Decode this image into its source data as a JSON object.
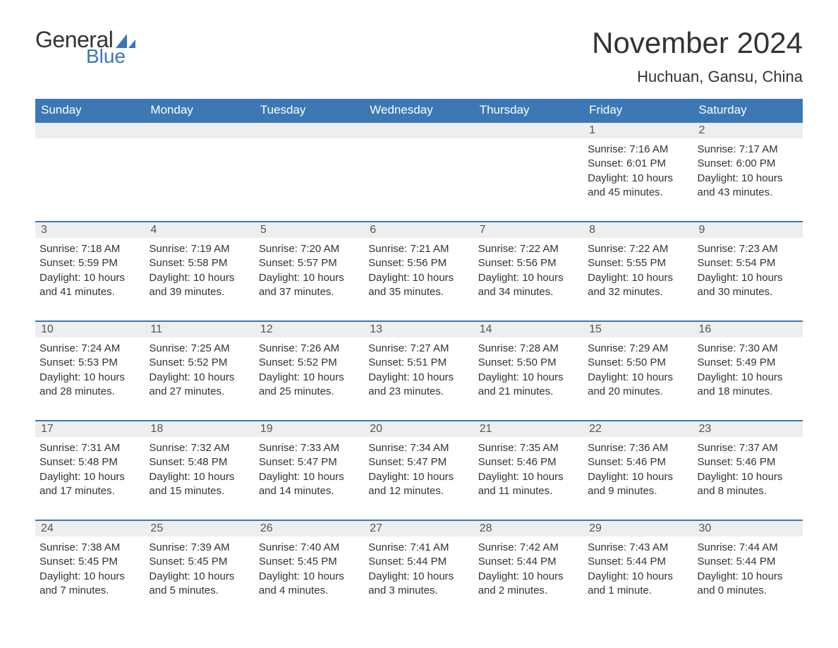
{
  "brand": {
    "word1": "General",
    "word2": "Blue",
    "logo_color": "#3b78b5"
  },
  "title": "November 2024",
  "location": "Huchuan, Gansu, China",
  "colors": {
    "header_bg": "#3b78b5",
    "header_text": "#ffffff",
    "daynum_bg": "#eeeeee",
    "row_divider": "#3b78b5",
    "text": "#333333",
    "background": "#ffffff"
  },
  "typography": {
    "title_fontsize": 42,
    "location_fontsize": 22,
    "header_fontsize": 17,
    "body_fontsize": 15
  },
  "columns": [
    "Sunday",
    "Monday",
    "Tuesday",
    "Wednesday",
    "Thursday",
    "Friday",
    "Saturday"
  ],
  "weeks": [
    [
      null,
      null,
      null,
      null,
      null,
      {
        "day": "1",
        "sunrise": "Sunrise: 7:16 AM",
        "sunset": "Sunset: 6:01 PM",
        "daylight1": "Daylight: 10 hours",
        "daylight2": "and 45 minutes."
      },
      {
        "day": "2",
        "sunrise": "Sunrise: 7:17 AM",
        "sunset": "Sunset: 6:00 PM",
        "daylight1": "Daylight: 10 hours",
        "daylight2": "and 43 minutes."
      }
    ],
    [
      {
        "day": "3",
        "sunrise": "Sunrise: 7:18 AM",
        "sunset": "Sunset: 5:59 PM",
        "daylight1": "Daylight: 10 hours",
        "daylight2": "and 41 minutes."
      },
      {
        "day": "4",
        "sunrise": "Sunrise: 7:19 AM",
        "sunset": "Sunset: 5:58 PM",
        "daylight1": "Daylight: 10 hours",
        "daylight2": "and 39 minutes."
      },
      {
        "day": "5",
        "sunrise": "Sunrise: 7:20 AM",
        "sunset": "Sunset: 5:57 PM",
        "daylight1": "Daylight: 10 hours",
        "daylight2": "and 37 minutes."
      },
      {
        "day": "6",
        "sunrise": "Sunrise: 7:21 AM",
        "sunset": "Sunset: 5:56 PM",
        "daylight1": "Daylight: 10 hours",
        "daylight2": "and 35 minutes."
      },
      {
        "day": "7",
        "sunrise": "Sunrise: 7:22 AM",
        "sunset": "Sunset: 5:56 PM",
        "daylight1": "Daylight: 10 hours",
        "daylight2": "and 34 minutes."
      },
      {
        "day": "8",
        "sunrise": "Sunrise: 7:22 AM",
        "sunset": "Sunset: 5:55 PM",
        "daylight1": "Daylight: 10 hours",
        "daylight2": "and 32 minutes."
      },
      {
        "day": "9",
        "sunrise": "Sunrise: 7:23 AM",
        "sunset": "Sunset: 5:54 PM",
        "daylight1": "Daylight: 10 hours",
        "daylight2": "and 30 minutes."
      }
    ],
    [
      {
        "day": "10",
        "sunrise": "Sunrise: 7:24 AM",
        "sunset": "Sunset: 5:53 PM",
        "daylight1": "Daylight: 10 hours",
        "daylight2": "and 28 minutes."
      },
      {
        "day": "11",
        "sunrise": "Sunrise: 7:25 AM",
        "sunset": "Sunset: 5:52 PM",
        "daylight1": "Daylight: 10 hours",
        "daylight2": "and 27 minutes."
      },
      {
        "day": "12",
        "sunrise": "Sunrise: 7:26 AM",
        "sunset": "Sunset: 5:52 PM",
        "daylight1": "Daylight: 10 hours",
        "daylight2": "and 25 minutes."
      },
      {
        "day": "13",
        "sunrise": "Sunrise: 7:27 AM",
        "sunset": "Sunset: 5:51 PM",
        "daylight1": "Daylight: 10 hours",
        "daylight2": "and 23 minutes."
      },
      {
        "day": "14",
        "sunrise": "Sunrise: 7:28 AM",
        "sunset": "Sunset: 5:50 PM",
        "daylight1": "Daylight: 10 hours",
        "daylight2": "and 21 minutes."
      },
      {
        "day": "15",
        "sunrise": "Sunrise: 7:29 AM",
        "sunset": "Sunset: 5:50 PM",
        "daylight1": "Daylight: 10 hours",
        "daylight2": "and 20 minutes."
      },
      {
        "day": "16",
        "sunrise": "Sunrise: 7:30 AM",
        "sunset": "Sunset: 5:49 PM",
        "daylight1": "Daylight: 10 hours",
        "daylight2": "and 18 minutes."
      }
    ],
    [
      {
        "day": "17",
        "sunrise": "Sunrise: 7:31 AM",
        "sunset": "Sunset: 5:48 PM",
        "daylight1": "Daylight: 10 hours",
        "daylight2": "and 17 minutes."
      },
      {
        "day": "18",
        "sunrise": "Sunrise: 7:32 AM",
        "sunset": "Sunset: 5:48 PM",
        "daylight1": "Daylight: 10 hours",
        "daylight2": "and 15 minutes."
      },
      {
        "day": "19",
        "sunrise": "Sunrise: 7:33 AM",
        "sunset": "Sunset: 5:47 PM",
        "daylight1": "Daylight: 10 hours",
        "daylight2": "and 14 minutes."
      },
      {
        "day": "20",
        "sunrise": "Sunrise: 7:34 AM",
        "sunset": "Sunset: 5:47 PM",
        "daylight1": "Daylight: 10 hours",
        "daylight2": "and 12 minutes."
      },
      {
        "day": "21",
        "sunrise": "Sunrise: 7:35 AM",
        "sunset": "Sunset: 5:46 PM",
        "daylight1": "Daylight: 10 hours",
        "daylight2": "and 11 minutes."
      },
      {
        "day": "22",
        "sunrise": "Sunrise: 7:36 AM",
        "sunset": "Sunset: 5:46 PM",
        "daylight1": "Daylight: 10 hours",
        "daylight2": "and 9 minutes."
      },
      {
        "day": "23",
        "sunrise": "Sunrise: 7:37 AM",
        "sunset": "Sunset: 5:46 PM",
        "daylight1": "Daylight: 10 hours",
        "daylight2": "and 8 minutes."
      }
    ],
    [
      {
        "day": "24",
        "sunrise": "Sunrise: 7:38 AM",
        "sunset": "Sunset: 5:45 PM",
        "daylight1": "Daylight: 10 hours",
        "daylight2": "and 7 minutes."
      },
      {
        "day": "25",
        "sunrise": "Sunrise: 7:39 AM",
        "sunset": "Sunset: 5:45 PM",
        "daylight1": "Daylight: 10 hours",
        "daylight2": "and 5 minutes."
      },
      {
        "day": "26",
        "sunrise": "Sunrise: 7:40 AM",
        "sunset": "Sunset: 5:45 PM",
        "daylight1": "Daylight: 10 hours",
        "daylight2": "and 4 minutes."
      },
      {
        "day": "27",
        "sunrise": "Sunrise: 7:41 AM",
        "sunset": "Sunset: 5:44 PM",
        "daylight1": "Daylight: 10 hours",
        "daylight2": "and 3 minutes."
      },
      {
        "day": "28",
        "sunrise": "Sunrise: 7:42 AM",
        "sunset": "Sunset: 5:44 PM",
        "daylight1": "Daylight: 10 hours",
        "daylight2": "and 2 minutes."
      },
      {
        "day": "29",
        "sunrise": "Sunrise: 7:43 AM",
        "sunset": "Sunset: 5:44 PM",
        "daylight1": "Daylight: 10 hours",
        "daylight2": "and 1 minute."
      },
      {
        "day": "30",
        "sunrise": "Sunrise: 7:44 AM",
        "sunset": "Sunset: 5:44 PM",
        "daylight1": "Daylight: 10 hours",
        "daylight2": "and 0 minutes."
      }
    ]
  ]
}
